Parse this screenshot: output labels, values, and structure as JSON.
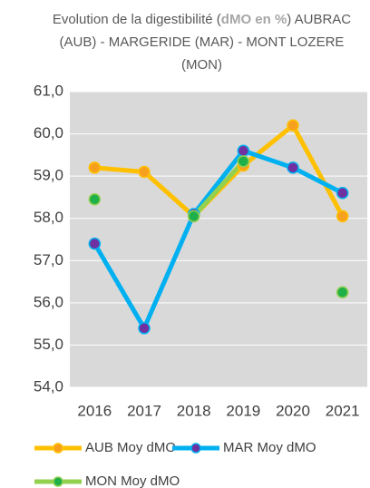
{
  "chart_data": {
    "type": "line",
    "title": [
      "Evolution de la digestibilité (",
      "dMO en %",
      ") AUBRAC (AUB) - MARGERIDE (MAR) - MONT LOZERE (MON)"
    ],
    "categories": [
      "2016",
      "2017",
      "2018",
      "2019",
      "2020",
      "2021"
    ],
    "series": [
      {
        "name": "AUB Moy dMO",
        "color": "#ffc000",
        "marker_color": "#f7a01e",
        "values": [
          59.2,
          59.1,
          58.05,
          59.25,
          60.2,
          58.05
        ]
      },
      {
        "name": "MAR Moy dMO",
        "color": "#00b0f0",
        "marker_color": "#7030a0",
        "values": [
          57.4,
          55.4,
          58.1,
          59.6,
          59.2,
          58.6
        ]
      },
      {
        "name": "MON Moy dMO",
        "color": "#92d050",
        "marker_color": "#1fb04a",
        "values": [
          58.45,
          null,
          58.05,
          59.35,
          null,
          56.25
        ]
      }
    ],
    "ylim": [
      54,
      61
    ],
    "yticks": [
      {
        "value": 54,
        "label": "54,0"
      },
      {
        "value": 55,
        "label": "55,0"
      },
      {
        "value": 56,
        "label": "56,0"
      },
      {
        "value": 57,
        "label": "57,0"
      },
      {
        "value": 58,
        "label": "58,0"
      },
      {
        "value": 59,
        "label": "59,0"
      },
      {
        "value": 60,
        "label": "60,0"
      },
      {
        "value": 61,
        "label": "61,0"
      }
    ],
    "grid": true,
    "legend": "bottom"
  }
}
